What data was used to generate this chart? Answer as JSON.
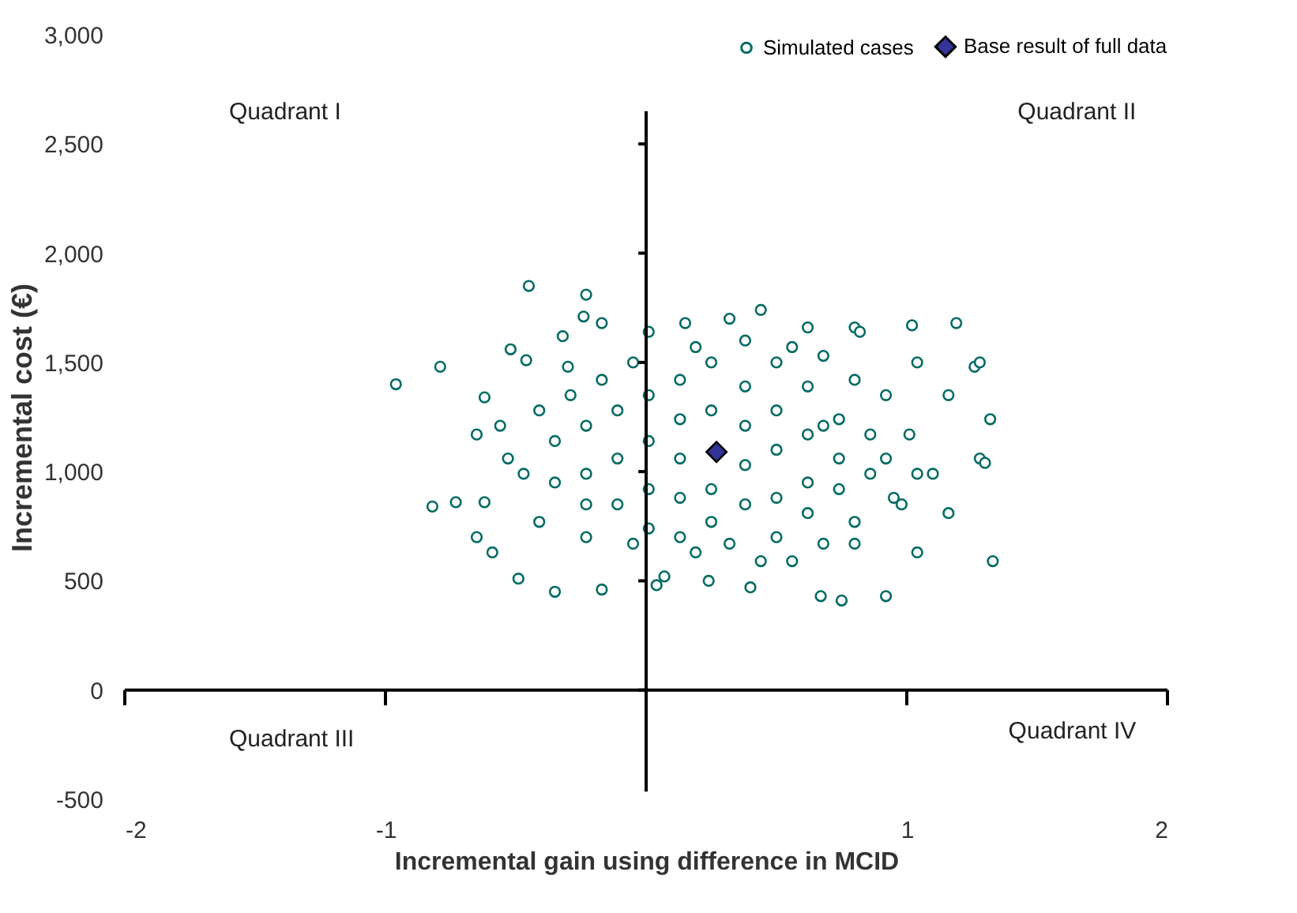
{
  "chart_data": {
    "type": "scatter",
    "xlabel": "Incremental gain using difference in MCID",
    "ylabel": "Incremental cost (€)",
    "xlim": [
      -2,
      2
    ],
    "xticks": [
      -2,
      -1,
      1,
      2
    ],
    "ylim": [
      -500,
      3000
    ],
    "yticks": [
      -500,
      0,
      500,
      {
        "value": 1000,
        "label": "1,000"
      },
      {
        "value": 1500,
        "label": "1,500"
      },
      {
        "value": 2000,
        "label": "2,000"
      },
      {
        "value": 2500,
        "label": "2,500"
      },
      {
        "value": 3000,
        "label": "3,000"
      }
    ],
    "legend": "top right",
    "annotations": [
      "Quadrant I",
      "Quadrant II",
      "Quadrant III",
      "Quadrant IV"
    ],
    "series": [
      {
        "name": "Simulated cases",
        "color": "#006b63",
        "marker": "circle",
        "x": [
          -0.96,
          -0.79,
          -0.82,
          -0.73,
          -0.65,
          -0.59,
          -0.62,
          -0.49,
          -0.35,
          -0.17,
          -0.45,
          -0.23,
          -0.24,
          -0.52,
          -0.62,
          -0.65,
          -0.46,
          -0.32,
          -0.3,
          -0.17,
          0.01,
          0.15,
          0.32,
          0.44,
          0.62,
          0.8,
          0.82,
          1.02,
          1.19,
          1.26,
          1.28,
          1.32,
          1.28,
          1.3,
          1.33,
          1.16,
          1.04,
          0.92,
          0.75,
          0.67,
          0.56,
          0.4,
          0.24,
          0.07,
          0.04,
          1.01,
          1.1,
          0.92,
          0.8,
          0.68,
          1.16,
          1.04,
          0.98,
          0.8,
          0.68,
          0.5,
          0.32,
          0.13,
          -0.05,
          -0.23,
          -0.41,
          -0.47,
          -0.53,
          -0.56,
          -0.41,
          -0.29,
          -0.17,
          -0.05,
          -0.23,
          -0.23,
          -0.11,
          -0.11,
          -0.11,
          0.01,
          0.01,
          0.01,
          0.01,
          0.13,
          0.13,
          0.13,
          0.13,
          0.25,
          0.25,
          0.25,
          0.25,
          0.38,
          0.38,
          0.38,
          0.38,
          0.5,
          0.5,
          0.5,
          0.5,
          0.62,
          0.62,
          0.62,
          0.62,
          0.74,
          0.74,
          0.74,
          0.86,
          0.86,
          -0.35,
          -0.35,
          -0.23,
          0.19,
          0.44,
          0.68,
          0.56,
          0.38,
          0.19,
          0.92,
          1.04,
          0.95,
          0.8
        ],
        "values": [
          1400,
          1480,
          840,
          860,
          700,
          630,
          860,
          510,
          450,
          460,
          1850,
          1810,
          1710,
          1560,
          1340,
          1170,
          1510,
          1620,
          1480,
          1680,
          1640,
          1680,
          1700,
          1740,
          1660,
          1660,
          1640,
          1670,
          1680,
          1480,
          1500,
          1240,
          1060,
          1040,
          590,
          810,
          630,
          430,
          410,
          430,
          590,
          470,
          500,
          520,
          480,
          1170,
          990,
          1350,
          1420,
          1530,
          1350,
          1500,
          850,
          770,
          670,
          700,
          670,
          700,
          670,
          700,
          770,
          990,
          1060,
          1210,
          1280,
          1350,
          1420,
          1500,
          1210,
          990,
          1280,
          1060,
          850,
          1350,
          1140,
          920,
          740,
          1420,
          1240,
          1060,
          880,
          1500,
          1280,
          920,
          770,
          1390,
          1210,
          1030,
          850,
          1500,
          1280,
          1100,
          880,
          1390,
          1170,
          950,
          810,
          1240,
          1060,
          920,
          1170,
          990,
          1140,
          950,
          850,
          630,
          590,
          1210,
          1570,
          1600,
          1570,
          1060,
          990,
          880,
          670
        ]
      },
      {
        "name": "Base result of full data",
        "color": "#333399",
        "marker": "diamond",
        "x": [
          0.27
        ],
        "values": [
          1090
        ]
      }
    ]
  }
}
